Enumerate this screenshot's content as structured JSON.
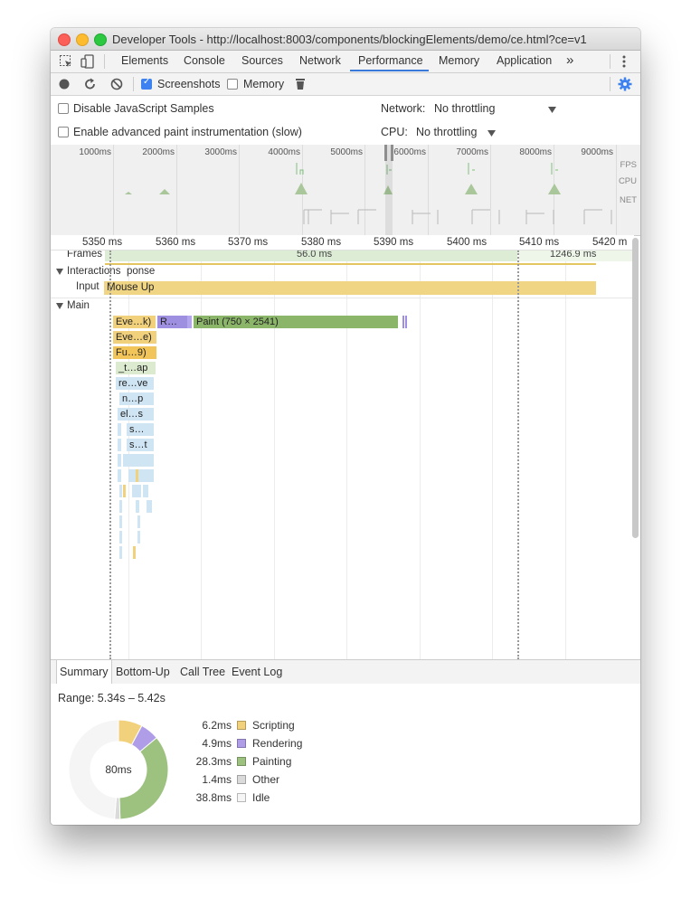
{
  "window": {
    "title": "Developer Tools - http://localhost:8003/components/blockingElements/demo/ce.html?ce=v1"
  },
  "tabs": [
    "Elements",
    "Console",
    "Sources",
    "Network",
    "Performance",
    "Memory",
    "Application"
  ],
  "active_tab": "Performance",
  "more_tabs": "»",
  "toolbar": {
    "screenshots_label": "Screenshots",
    "screenshots_checked": true,
    "memory_label": "Memory",
    "memory_checked": false
  },
  "settings": {
    "disable_js_samples": "Disable JavaScript Samples",
    "advanced_paint": "Enable advanced paint instrumentation (slow)",
    "network_label": "Network:",
    "network_value": "No throttling",
    "cpu_label": "CPU:",
    "cpu_value": "No throttling"
  },
  "overview": {
    "ticks": [
      "1000ms",
      "2000ms",
      "3000ms",
      "4000ms",
      "5000ms",
      "6000ms",
      "7000ms",
      "8000ms",
      "9000ms"
    ],
    "rows": [
      "FPS",
      "CPU",
      "NET"
    ]
  },
  "ruler": [
    "5350 ms",
    "5360 ms",
    "5370 ms",
    "5380 ms",
    "5390 ms",
    "5400 ms",
    "5410 ms",
    "5420 m"
  ],
  "tracks": {
    "frames_label": "Frames",
    "frame_1": "56.0 ms",
    "frame_2": "1246.9 ms",
    "interactions_label": "Interactions",
    "interactions_extra": "ponse",
    "input_label": "Input",
    "input_event": "Mouse Up",
    "main_label": "Main"
  },
  "flame": {
    "row0": [
      "Eve…k)",
      "R…",
      "Paint (750 × 2541)"
    ],
    "stack": [
      "Eve…e)",
      "Fu…9)",
      "_t…ap",
      "re…ve",
      "n…p",
      "el…s",
      "s…",
      "s…t"
    ]
  },
  "bottom_tabs": [
    "Summary",
    "Bottom-Up",
    "Call Tree",
    "Event Log"
  ],
  "summary": {
    "range": "Range: 5.34s – 5.42s",
    "total": "80ms",
    "items": [
      {
        "time": "6.2ms",
        "label": "Scripting",
        "color": "#f2d17c",
        "value": 6.2
      },
      {
        "time": "4.9ms",
        "label": "Rendering",
        "color": "#af9de8",
        "value": 4.9
      },
      {
        "time": "28.3ms",
        "label": "Painting",
        "color": "#9dc280",
        "value": 28.3
      },
      {
        "time": "1.4ms",
        "label": "Other",
        "color": "#dadada",
        "value": 1.4
      },
      {
        "time": "38.8ms",
        "label": "Idle",
        "color": "#f5f5f5",
        "value": 38.8
      }
    ]
  }
}
